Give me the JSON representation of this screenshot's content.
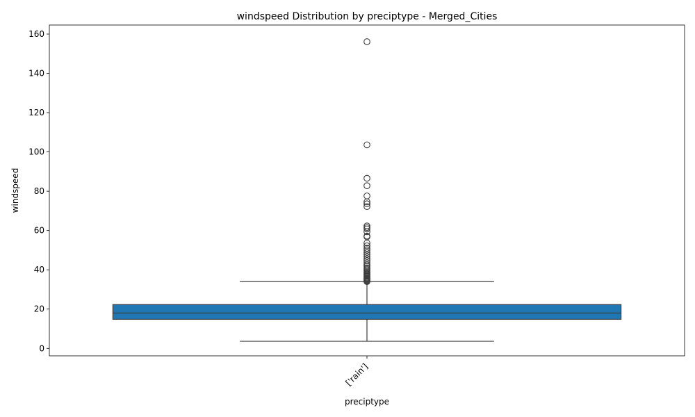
{
  "chart_data": {
    "type": "box",
    "title": "windspeed Distribution by preciptype - Merged_Cities",
    "xlabel": "preciptype",
    "ylabel": "windspeed",
    "ylim": [
      -3.8,
      164.6
    ],
    "yticks": [
      0,
      20,
      40,
      60,
      80,
      100,
      120,
      140,
      160
    ],
    "grid": false,
    "categories": [
      "['rain']"
    ],
    "boxes": [
      {
        "category": "['rain']",
        "whisker_low": 3.6,
        "q1": 14.8,
        "median": 18.0,
        "q3": 22.3,
        "whisker_high": 34.0,
        "color": "#1f77b4",
        "outliers": [
          34.0,
          34.3,
          34.6,
          35.0,
          35.4,
          35.8,
          36.2,
          36.7,
          37.1,
          37.6,
          38.0,
          38.5,
          39.0,
          39.6,
          40.3,
          41.0,
          41.8,
          42.5,
          43.5,
          44.6,
          45.6,
          46.7,
          47.8,
          48.9,
          50.0,
          51.0,
          52.2,
          53.6,
          56.8,
          57.2,
          59.4,
          60.8,
          61.5,
          62.3,
          72.2,
          73.6,
          74.6,
          77.6,
          82.8,
          86.6,
          103.6,
          156.1
        ]
      }
    ]
  }
}
